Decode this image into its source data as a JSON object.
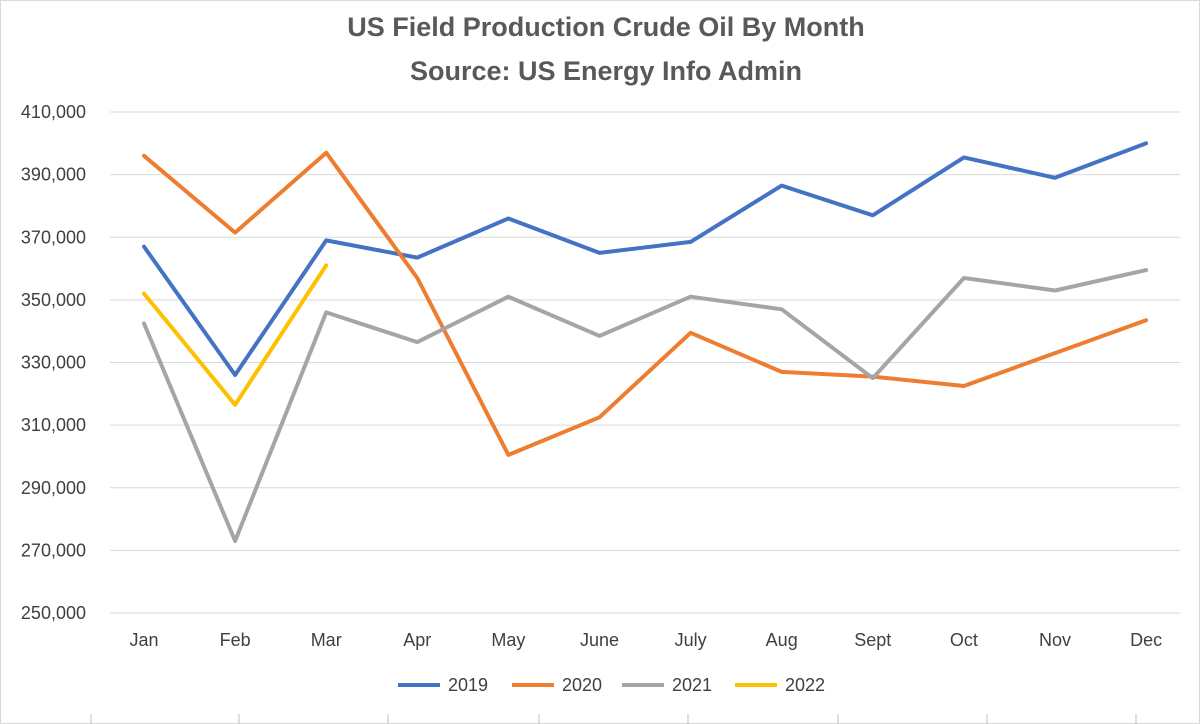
{
  "chart_data": {
    "type": "line",
    "title": "US Field Production Crude Oil By Month",
    "subtitle": "Source: US Energy Info Admin",
    "xlabel": "",
    "ylabel": "",
    "categories": [
      "Jan",
      "Feb",
      "Mar",
      "Apr",
      "May",
      "June",
      "July",
      "Aug",
      "Sept",
      "Oct",
      "Nov",
      "Dec"
    ],
    "ylim": [
      250000,
      410000
    ],
    "yticks": [
      250000,
      270000,
      290000,
      310000,
      330000,
      350000,
      370000,
      390000,
      410000
    ],
    "ytick_labels": [
      "250,000",
      "270,000",
      "290,000",
      "310,000",
      "330,000",
      "350,000",
      "370,000",
      "390,000",
      "410,000"
    ],
    "grid": true,
    "legend_position": "bottom",
    "series": [
      {
        "name": "2019",
        "color": "#4472C4",
        "values": [
          367000,
          326000,
          369000,
          363500,
          376000,
          365000,
          368500,
          386500,
          377000,
          395500,
          389000,
          400000
        ]
      },
      {
        "name": "2020",
        "color": "#ED7D31",
        "values": [
          396000,
          371500,
          397000,
          357000,
          300500,
          312500,
          339500,
          327000,
          325500,
          322500,
          333000,
          343500
        ]
      },
      {
        "name": "2021",
        "color": "#A5A5A5",
        "values": [
          342500,
          273000,
          346000,
          336500,
          351000,
          338500,
          351000,
          347000,
          325000,
          357000,
          353000,
          359500
        ]
      },
      {
        "name": "2022",
        "color": "#FFC000",
        "values": [
          352000,
          316500,
          361000,
          null,
          null,
          null,
          null,
          null,
          null,
          null,
          null,
          null
        ]
      }
    ]
  }
}
